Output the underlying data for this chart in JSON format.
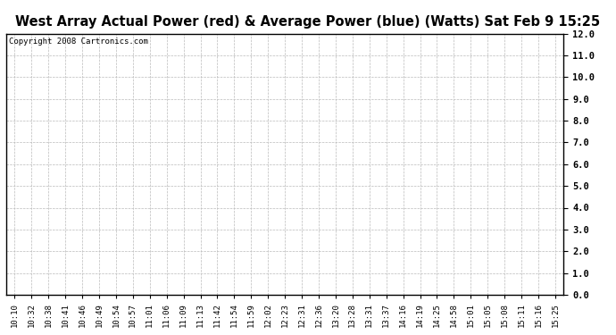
{
  "title": "West Array Actual Power (red) & Average Power (blue) (Watts) Sat Feb 9 15:25",
  "copyright_text": "Copyright 2008 Cartronics.com",
  "ylim": [
    0.0,
    12.0
  ],
  "yticks": [
    0.0,
    1.0,
    2.0,
    3.0,
    4.0,
    5.0,
    6.0,
    7.0,
    8.0,
    9.0,
    10.0,
    11.0,
    12.0
  ],
  "xtick_labels": [
    "10:10",
    "10:32",
    "10:38",
    "10:41",
    "10:46",
    "10:49",
    "10:54",
    "10:57",
    "11:01",
    "11:06",
    "11:09",
    "11:13",
    "11:42",
    "11:54",
    "11:59",
    "12:02",
    "12:23",
    "12:31",
    "12:36",
    "13:20",
    "13:28",
    "13:31",
    "13:37",
    "14:16",
    "14:19",
    "14:25",
    "14:58",
    "15:01",
    "15:05",
    "15:08",
    "15:11",
    "15:16",
    "15:25"
  ],
  "background_color": "#ffffff",
  "grid_color": "#bbbbbb",
  "title_fontsize": 10.5,
  "tick_fontsize": 6.5,
  "copyright_fontsize": 6.5
}
